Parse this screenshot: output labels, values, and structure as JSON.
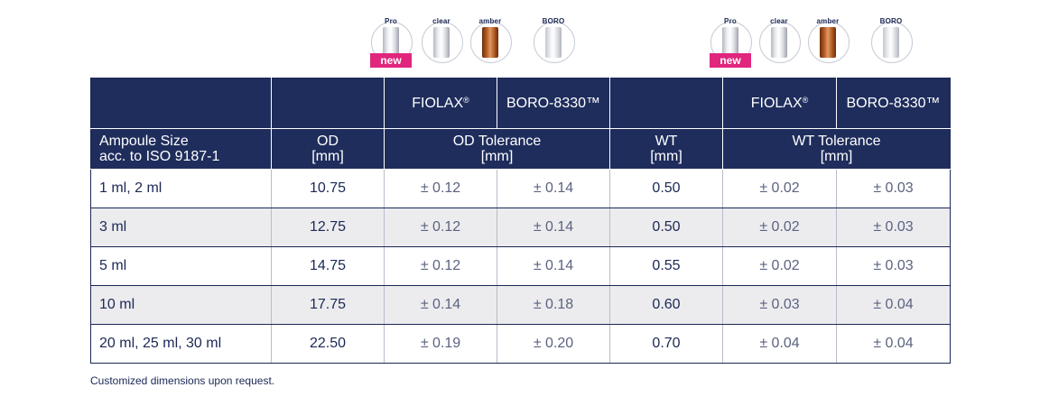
{
  "vials_left": {
    "pro_label": "Pro",
    "clear_label": "clear",
    "amber_label": "amber",
    "boro_label": "BORO",
    "new_badge": "new"
  },
  "vials_right": {
    "pro_label": "Pro",
    "clear_label": "clear",
    "amber_label": "amber",
    "boro_label": "BORO",
    "new_badge": "new"
  },
  "table": {
    "header_top": {
      "fiolax_od": "FIOLAX",
      "boro_od": "BORO-8330™",
      "fiolax_wt": "FIOLAX",
      "boro_wt": "BORO-8330™",
      "registered": "®"
    },
    "header": {
      "ampoule_size_line1": "Ampoule Size",
      "ampoule_size_line2": "acc. to ISO 9187-1",
      "od_line1": "OD",
      "od_line2": "[mm]",
      "od_tol_line1": "OD Tolerance",
      "od_tol_line2": "[mm]",
      "wt_line1": "WT",
      "wt_line2": "[mm]",
      "wt_tol_line1": "WT Tolerance",
      "wt_tol_line2": "[mm]"
    },
    "rows": [
      {
        "size": "1 ml, 2 ml",
        "od": "10.75",
        "od_tol_fiolax": "± 0.12",
        "od_tol_boro": "± 0.14",
        "wt": "0.50",
        "wt_tol_fiolax": "± 0.02",
        "wt_tol_boro": "± 0.03"
      },
      {
        "size": "3 ml",
        "od": "12.75",
        "od_tol_fiolax": "± 0.12",
        "od_tol_boro": "± 0.14",
        "wt": "0.50",
        "wt_tol_fiolax": "± 0.02",
        "wt_tol_boro": "± 0.03"
      },
      {
        "size": "5 ml",
        "od": "14.75",
        "od_tol_fiolax": "± 0.12",
        "od_tol_boro": "± 0.14",
        "wt": "0.55",
        "wt_tol_fiolax": "± 0.02",
        "wt_tol_boro": "± 0.03"
      },
      {
        "size": "10 ml",
        "od": "17.75",
        "od_tol_fiolax": "± 0.14",
        "od_tol_boro": "± 0.18",
        "wt": "0.60",
        "wt_tol_fiolax": "± 0.03",
        "wt_tol_boro": "± 0.04"
      },
      {
        "size": "20 ml, 25 ml, 30 ml",
        "od": "22.50",
        "od_tol_fiolax": "± 0.19",
        "od_tol_boro": "± 0.20",
        "wt": "0.70",
        "wt_tol_fiolax": "± 0.04",
        "wt_tol_boro": "± 0.04"
      }
    ]
  },
  "footnote": "Customized dimensions upon request.",
  "colors": {
    "header_bg": "#1f2d5c",
    "text": "#1b2855",
    "new_badge": "#e0267d",
    "alt_row": "#ececee"
  }
}
